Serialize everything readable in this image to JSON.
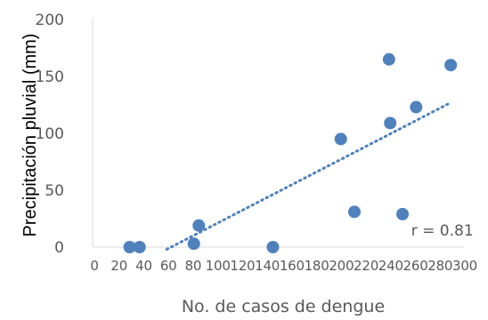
{
  "chart_data": {
    "type": "scatter",
    "title": "",
    "xlabel": "No. de casos de dengue",
    "ylabel": "Precipitación pluvial (mm)",
    "xlim": [
      0,
      300
    ],
    "ylim": [
      0,
      200
    ],
    "x_ticks": [
      0,
      20,
      40,
      60,
      80,
      100,
      120,
      140,
      160,
      180,
      200,
      220,
      240,
      260,
      280,
      300
    ],
    "y_ticks": [
      0,
      50,
      100,
      150,
      200
    ],
    "grid": false,
    "legend": "none",
    "series": [
      {
        "color": "#4f81bd",
        "x": [
          30,
          38,
          82,
          86,
          146,
          201,
          212,
          240,
          241,
          251,
          262,
          290
        ],
        "y": [
          0,
          0,
          3,
          19,
          0,
          95,
          31,
          165,
          109,
          29,
          123,
          160
        ]
      }
    ],
    "trendline": {
      "style": "dotted",
      "color": "#4f81bd",
      "x": [
        60,
        290
      ],
      "y": [
        -2,
        127
      ]
    },
    "annotations": [
      {
        "text": "r = 0.81",
        "x": 258,
        "y": 10
      }
    ]
  }
}
